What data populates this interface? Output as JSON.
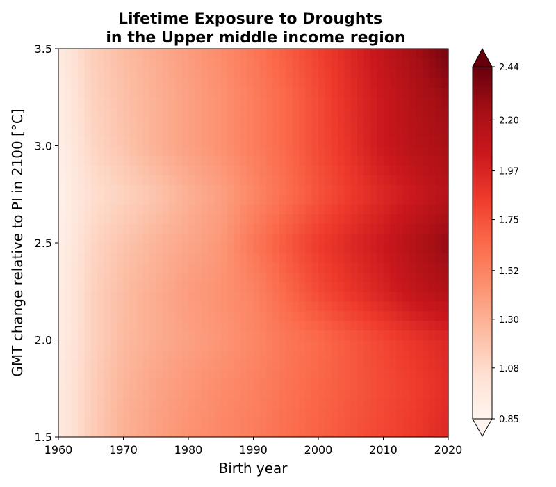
{
  "chart_data": {
    "type": "heatmap",
    "title_line1": "Lifetime Exposure to Droughts",
    "title_line2": "in the Upper middle income region",
    "xlabel": "Birth year",
    "ylabel": "GMT change relative to PI in 2100 [°C]",
    "xlim": [
      1960,
      2020
    ],
    "ylim": [
      1.5,
      3.5
    ],
    "x_ticks": [
      "1960",
      "1970",
      "1980",
      "1990",
      "2000",
      "2010",
      "2020"
    ],
    "y_ticks": [
      "1.5",
      "2.0",
      "2.5",
      "3.0",
      "3.5"
    ],
    "colormap": "Reds",
    "colorbar": {
      "min": 0.85,
      "max": 2.44,
      "extend": "both",
      "ticks": [
        "0.85",
        "1.08",
        "1.30",
        "1.52",
        "1.75",
        "1.97",
        "2.20",
        "2.44"
      ]
    },
    "x": [
      1960,
      1965,
      1970,
      1975,
      1980,
      1985,
      1990,
      1995,
      2000,
      2005,
      2010,
      2015,
      2020
    ],
    "y": [
      1.5,
      1.75,
      2.0,
      2.25,
      2.5,
      2.75,
      3.0,
      3.25,
      3.5
    ],
    "z": [
      [
        0.95,
        1.15,
        1.3,
        1.38,
        1.45,
        1.5,
        1.55,
        1.62,
        1.68,
        1.74,
        1.8,
        1.86,
        1.95
      ],
      [
        0.95,
        1.14,
        1.28,
        1.36,
        1.42,
        1.48,
        1.53,
        1.6,
        1.66,
        1.72,
        1.78,
        1.84,
        1.92
      ],
      [
        0.93,
        1.12,
        1.25,
        1.32,
        1.38,
        1.43,
        1.5,
        1.58,
        1.64,
        1.72,
        1.8,
        1.88,
        1.95
      ],
      [
        0.92,
        1.12,
        1.24,
        1.32,
        1.4,
        1.45,
        1.52,
        1.65,
        1.78,
        1.88,
        1.98,
        2.1,
        2.18
      ],
      [
        0.9,
        1.1,
        1.2,
        1.28,
        1.35,
        1.42,
        1.58,
        1.72,
        1.85,
        1.95,
        2.05,
        2.18,
        2.3
      ],
      [
        0.88,
        1.05,
        1.12,
        1.2,
        1.3,
        1.38,
        1.5,
        1.62,
        1.74,
        1.85,
        1.95,
        2.05,
        2.15
      ],
      [
        0.9,
        1.1,
        1.2,
        1.3,
        1.38,
        1.45,
        1.55,
        1.65,
        1.78,
        1.9,
        2.05,
        2.15,
        2.22
      ],
      [
        0.92,
        1.12,
        1.22,
        1.3,
        1.38,
        1.45,
        1.55,
        1.65,
        1.78,
        1.92,
        2.05,
        2.18,
        2.28
      ],
      [
        0.95,
        1.14,
        1.24,
        1.32,
        1.4,
        1.48,
        1.58,
        1.7,
        1.82,
        1.95,
        2.1,
        2.25,
        2.4
      ]
    ]
  }
}
